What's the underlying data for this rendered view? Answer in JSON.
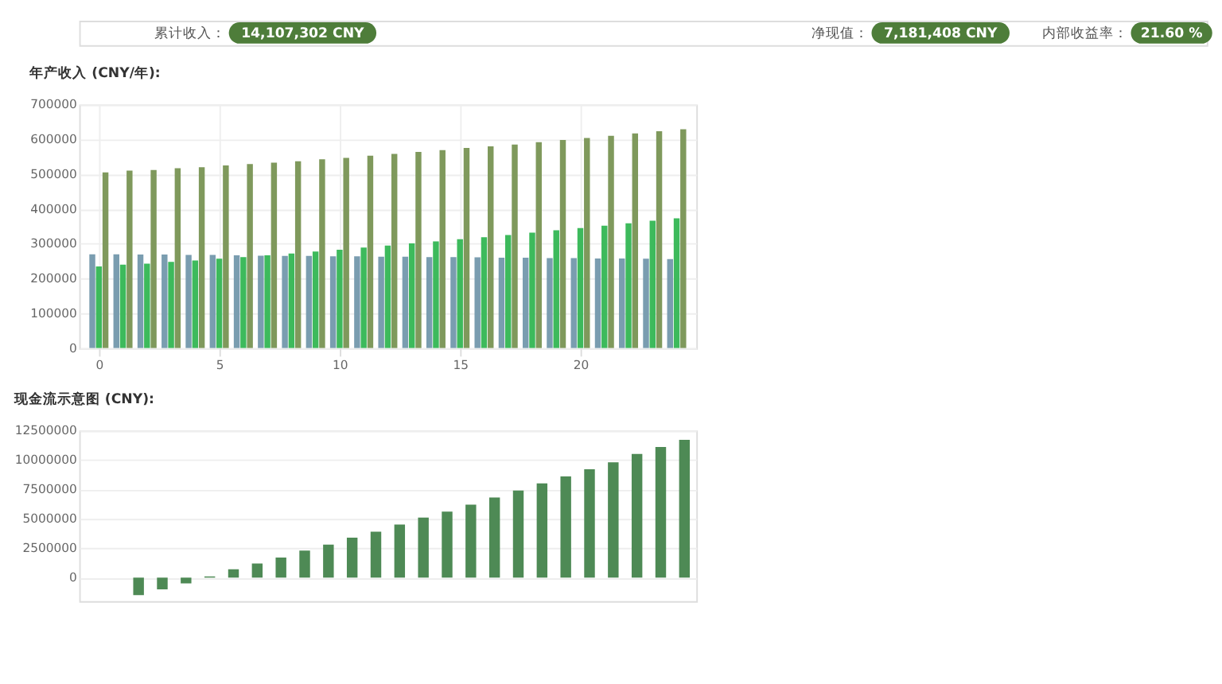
{
  "chart_data": [
    {
      "type": "other",
      "annotations": [
        "累计收入：",
        "14,107,302 CNY",
        "净现值：",
        "7,181,408 CNY",
        "内部收益率：",
        "21.60 %"
      ],
      "color": "#4e7d3a"
    },
    {
      "type": "bar",
      "title": "年产收入 (CNY/年):",
      "x": [
        0,
        1,
        2,
        3,
        4,
        5,
        6,
        7,
        8,
        9,
        10,
        11,
        12,
        13,
        14,
        15,
        16,
        17,
        18,
        19,
        20,
        21,
        22,
        23,
        24
      ],
      "xlim": [
        -0.5,
        24.5
      ],
      "xticks": [
        0,
        5,
        10,
        15,
        20
      ],
      "ylim": [
        0,
        700000
      ],
      "yticks": [
        0,
        100000,
        200000,
        300000,
        400000,
        500000,
        600000,
        700000
      ],
      "grid": true,
      "series": [
        {
          "color": "#7a9db0",
          "values": [
            270000,
            270000,
            269000,
            269000,
            268000,
            268000,
            267000,
            266000,
            265000,
            265000,
            264000,
            264000,
            263000,
            263000,
            262000,
            262000,
            261000,
            260000,
            260000,
            259000,
            259000,
            258000,
            258000,
            257000,
            256000
          ]
        },
        {
          "color": "#3dba5c",
          "values": [
            235000,
            240000,
            243000,
            248000,
            252000,
            257000,
            262000,
            267000,
            272000,
            278000,
            283000,
            289000,
            295000,
            301000,
            307000,
            313000,
            319000,
            325000,
            332000,
            339000,
            345000,
            352000,
            359000,
            366000,
            373000
          ]
        },
        {
          "color": "#7f995c",
          "values": [
            505000,
            510000,
            512000,
            517000,
            520000,
            525000,
            529000,
            533000,
            537000,
            543000,
            547000,
            553000,
            558000,
            564000,
            569000,
            575000,
            580000,
            585000,
            592000,
            598000,
            604000,
            610000,
            617000,
            623000,
            629000
          ]
        }
      ]
    },
    {
      "type": "bar",
      "title": "现金流示意图 (CNY):",
      "categories": [
        null,
        null,
        null,
        null,
        null,
        null,
        null,
        null,
        null,
        null,
        null,
        null,
        null,
        null,
        null,
        null,
        null,
        null,
        null,
        null,
        null,
        null,
        null,
        null,
        null,
        null
      ],
      "ylim": [
        -2000000,
        12500000
      ],
      "yticks": [
        0,
        2500000,
        5000000,
        7500000,
        10000000,
        12500000
      ],
      "grid": "y",
      "tick_labels": "y",
      "series": [
        {
          "color": "#4e8a55",
          "values": [
            null,
            null,
            -1500000,
            -1000000,
            -500000,
            100000,
            700000,
            1200000,
            1700000,
            2300000,
            2800000,
            3400000,
            3900000,
            4500000,
            5100000,
            5600000,
            6200000,
            6800000,
            7400000,
            8000000,
            8600000,
            9200000,
            9800000,
            10500000,
            11100000,
            11700000
          ]
        }
      ]
    }
  ]
}
